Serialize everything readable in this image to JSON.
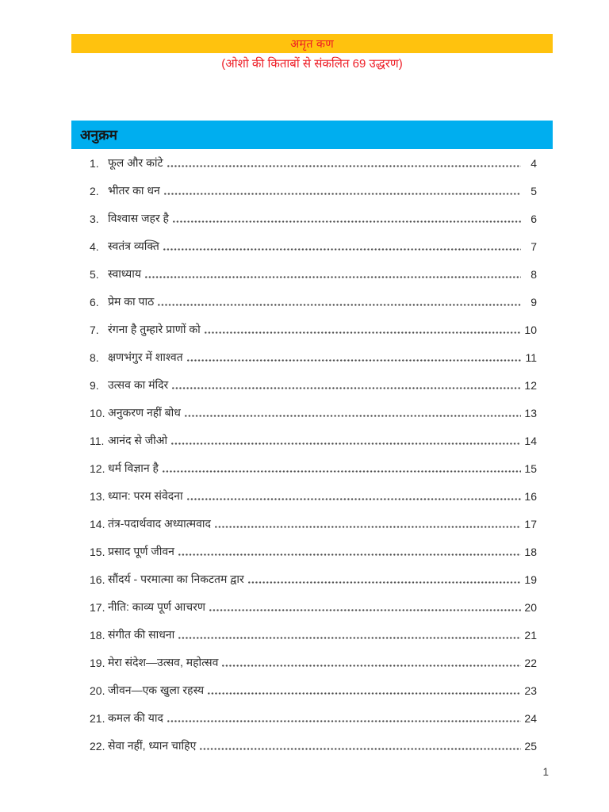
{
  "header": {
    "title": "अमृत कण",
    "subtitle": "(ओशो की किताबों से संकलित 69 उद्धरण)"
  },
  "toc": {
    "heading": "अनुक्रम",
    "items": [
      {
        "num": "1.",
        "title": "फूल और कांटे",
        "page": "4"
      },
      {
        "num": "2.",
        "title": "भीतर का धन",
        "page": "5"
      },
      {
        "num": "3.",
        "title": "विश्वास जहर है",
        "page": "6"
      },
      {
        "num": "4.",
        "title": "स्वतंत्र व्यक्ति",
        "page": "7"
      },
      {
        "num": "5.",
        "title": "स्वाध्याय",
        "page": "8"
      },
      {
        "num": "6.",
        "title": "प्रेम का पाठ",
        "page": "9"
      },
      {
        "num": "7.",
        "title": "रंगना है तुम्हारे प्राणों को",
        "page": "10"
      },
      {
        "num": "8.",
        "title": "क्षणभंगुर में शाश्वत",
        "page": "11"
      },
      {
        "num": "9.",
        "title": "उत्सव का मंदिर",
        "page": "12"
      },
      {
        "num": "10.",
        "title": "अनुकरण नहीं बोध",
        "page": "13"
      },
      {
        "num": "11.",
        "title": "आनंद से जीओ",
        "page": "14"
      },
      {
        "num": "12.",
        "title": "धर्म विज्ञान है",
        "page": "15"
      },
      {
        "num": "13.",
        "title": "ध्यान: परम संवेदना",
        "page": "16"
      },
      {
        "num": "14.",
        "title": "तंत्र-पदार्थवाद अध्यात्मवाद",
        "page": "17"
      },
      {
        "num": "15.",
        "title": "प्रसाद पूर्ण जीवन",
        "page": "18"
      },
      {
        "num": "16.",
        "title": "सौंदर्य - परमात्मा का निकटतम द्वार",
        "page": "19"
      },
      {
        "num": "17.",
        "title": "नीति: काव्य पूर्ण आचरण",
        "page": "20"
      },
      {
        "num": "18.",
        "title": "संगीत की साधना",
        "page": "21"
      },
      {
        "num": "19.",
        "title": "मेरा संदेश—उत्सव, महोत्सव",
        "page": "22"
      },
      {
        "num": "20.",
        "title": "जीवन—एक खुला रहस्य",
        "page": "23"
      },
      {
        "num": "21.",
        "title": "कमल की याद",
        "page": "24"
      },
      {
        "num": "22.",
        "title": "सेवा नहीं, ध्यान चाहिए",
        "page": "25"
      }
    ]
  },
  "footer": {
    "page_number": "1"
  },
  "colors": {
    "banner_yellow": "#FFC20E",
    "banner_blue": "#00AEEF",
    "title_red": "#EE1C25",
    "body_text": "#2B2B2B"
  }
}
